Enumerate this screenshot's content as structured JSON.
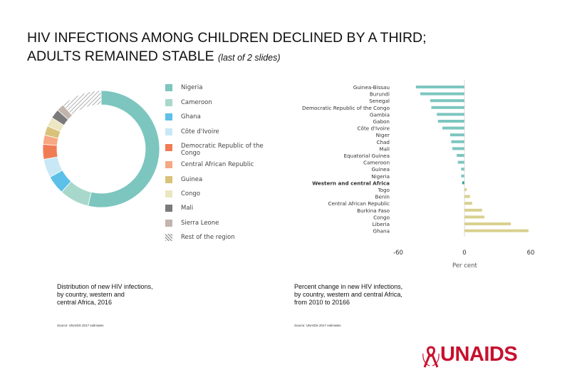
{
  "header": {
    "title_line1": "HIV INFECTIONS AMONG CHILDREN DECLINED BY A THIRD;",
    "title_line2": "ADULTS REMAINED STABLE",
    "title_note": "(last of 2 slides)"
  },
  "chart_data": [
    {
      "type": "pie",
      "variant": "donut",
      "title": "",
      "slices": [
        {
          "label": "Nigeria",
          "value": 52,
          "color": "#7cc6bf",
          "pattern": false
        },
        {
          "label": "Cameroon",
          "value": 8,
          "color": "#a8d8cc",
          "pattern": false
        },
        {
          "label": "Ghana",
          "value": 5,
          "color": "#5cc0e8",
          "pattern": false
        },
        {
          "label": "Côte d'Ivoire",
          "value": 5,
          "color": "#c8e8f6",
          "pattern": false
        },
        {
          "label": "Democratic Republic of the Congo",
          "value": 4,
          "color": "#f07c54",
          "pattern": false
        },
        {
          "label": "Central African Republic",
          "value": 2.5,
          "color": "#f5a882",
          "pattern": false
        },
        {
          "label": "Guinea",
          "value": 2.5,
          "color": "#d9c27a",
          "pattern": false
        },
        {
          "label": "Congo",
          "value": 2.5,
          "color": "#ece6c2",
          "pattern": false
        },
        {
          "label": "Mali",
          "value": 2.5,
          "color": "#7a7a7a",
          "pattern": false
        },
        {
          "label": "Sierra Leone",
          "value": 2,
          "color": "#c2b5ad",
          "pattern": false
        },
        {
          "label": "Rest of the region",
          "value": 11,
          "color": "#bdbdbd",
          "pattern": true
        }
      ]
    },
    {
      "type": "bar",
      "orientation": "horizontal",
      "title": "",
      "xlabel": "Per cent",
      "xlim": [
        -60,
        60
      ],
      "xticks": [
        "-60",
        "0",
        "60"
      ],
      "categories": [
        "Guinea-Bissau",
        "Burundi",
        "Senegal",
        "Democratic Republic of the Congo",
        "Gambia",
        "Gabon",
        "Côte d'Ivoire",
        "Niger",
        "Chad",
        "Mali",
        "Equatorial Guinea",
        "Cameroon",
        "Guinea",
        "Nigeria",
        "Western and central Africa",
        "Togo",
        "Benin",
        "Central African Republic",
        "Burkina Faso",
        "Congo",
        "Liberia",
        "Ghana"
      ],
      "values": [
        -44,
        -40,
        -31,
        -30,
        -25,
        -24,
        -20,
        -13,
        -12,
        -11,
        -7,
        -6,
        -3,
        -3,
        -2,
        2,
        5,
        7,
        16,
        18,
        42,
        58
      ],
      "colors": {
        "negative": "#7cc6bf",
        "positive": "#d9d08e",
        "highlight": "#2aa398"
      },
      "highlight_category": "Western and central Africa"
    }
  ],
  "captions": {
    "left": [
      "Distribution of new HIV infections,",
      "by country, western and",
      "central Africa, 2016"
    ],
    "right": [
      "Percent change in new HIV infections,",
      "by country, western and central Africa,",
      "from 2010 to 20166"
    ]
  },
  "sources": {
    "left": "Source: UNAIDS 2017 estimates",
    "right": "Source: UNAIDS 2017 estimates"
  },
  "logo": {
    "text": "UNAIDS"
  }
}
